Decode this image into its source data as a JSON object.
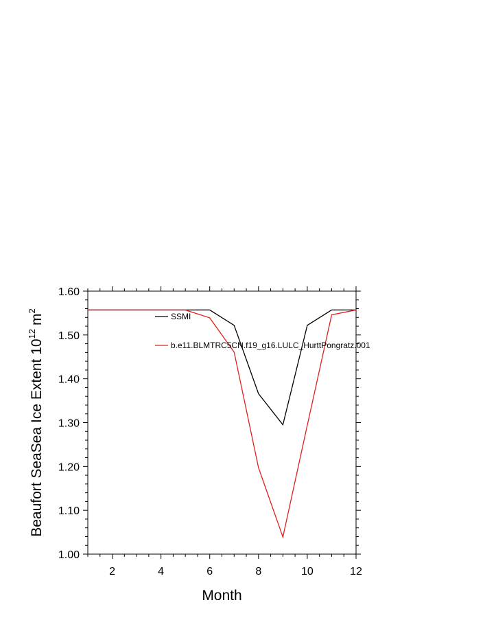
{
  "chart_data": {
    "type": "line",
    "title": "",
    "xlabel": "Month",
    "ylabel": "Beaufort SeaSea Ice Extent 10",
    "ylabel_exp": "12",
    "ylabel_unit": "m",
    "ylabel_unit_exp": "2",
    "xlim": [
      1,
      12
    ],
    "ylim": [
      1.0,
      1.6
    ],
    "x_ticks": [
      2,
      4,
      6,
      8,
      10,
      12
    ],
    "x_tick_labels": [
      "2",
      "4",
      "6",
      "8",
      "10",
      "12"
    ],
    "y_ticks": [
      1.0,
      1.1,
      1.2,
      1.3,
      1.4,
      1.5,
      1.6
    ],
    "y_tick_labels": [
      "1.00",
      "1.10",
      "1.20",
      "1.30",
      "1.40",
      "1.50",
      "1.60"
    ],
    "grid": false,
    "legend_position": "top-right inside",
    "x": [
      1,
      2,
      3,
      4,
      5,
      6,
      7,
      8,
      9,
      10,
      11,
      12
    ],
    "series": [
      {
        "name": "SSMI",
        "color": "#000000",
        "values": [
          1.557,
          1.557,
          1.557,
          1.557,
          1.557,
          1.557,
          1.522,
          1.366,
          1.295,
          1.522,
          1.557,
          1.557
        ]
      },
      {
        "name": "b.e11.BLMTRC5CN.f19_g16.LULC_HurttPongratz.001",
        "color": "#e0201b",
        "values": [
          1.557,
          1.557,
          1.557,
          1.557,
          1.557,
          1.539,
          1.461,
          1.197,
          1.039,
          1.294,
          1.546,
          1.557
        ]
      }
    ]
  }
}
